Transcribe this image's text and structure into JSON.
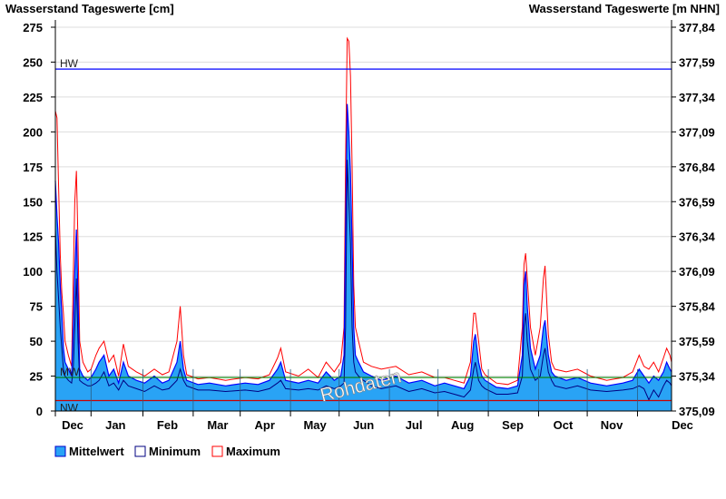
{
  "chart_data": {
    "type": "area",
    "title_left": "Wasserstand Tageswerte [cm]",
    "title_right": "Wasserstand Tageswerte [m NHN]",
    "ylim": [
      0,
      275
    ],
    "y_ticks": [
      0,
      25,
      50,
      75,
      100,
      125,
      150,
      175,
      200,
      225,
      250,
      275
    ],
    "y_tick_labels": [
      "0",
      "25",
      "50",
      "75",
      "100",
      "125",
      "150",
      "175",
      "200",
      "225",
      "250",
      "275"
    ],
    "y2_tick_labels": [
      "375,09",
      "375,34",
      "375,59",
      "375,84",
      "376,09",
      "376,34",
      "376,59",
      "376,84",
      "377,09",
      "377,34",
      "377,59",
      "377,84"
    ],
    "x_days": 380,
    "month_starts": [
      22,
      54,
      85,
      114,
      145,
      175,
      206,
      236,
      267,
      298,
      328,
      359
    ],
    "month_labels": [
      "Dec",
      "Jan",
      "Feb",
      "Mar",
      "Apr",
      "May",
      "Jun",
      "Jul",
      "Aug",
      "Sep",
      "Oct",
      "Nov",
      "Dec"
    ],
    "reference_lines": [
      {
        "label": "HW",
        "value": 245,
        "color": "#0000ff"
      },
      {
        "label": "MW",
        "value": 24,
        "color": "#008000"
      },
      {
        "label": "NW",
        "value": 7.5,
        "color": "#cc0000"
      }
    ],
    "watermark": "Rohdaten",
    "legend": [
      {
        "label": "Mittelwert",
        "color": "#29a3f5"
      },
      {
        "label": "Minimum",
        "color": "#000080"
      },
      {
        "label": "Maximum",
        "color": "#ff0000"
      }
    ],
    "columns": [
      "day",
      "mean",
      "min",
      "max"
    ],
    "points": [
      [
        0,
        165,
        130,
        215
      ],
      [
        1,
        140,
        100,
        210
      ],
      [
        2,
        120,
        80,
        160
      ],
      [
        3,
        90,
        60,
        112
      ],
      [
        4,
        70,
        45,
        85
      ],
      [
        5,
        45,
        30,
        70
      ],
      [
        6,
        35,
        25,
        50
      ],
      [
        8,
        30,
        22,
        40
      ],
      [
        10,
        25,
        20,
        32
      ],
      [
        11,
        60,
        30,
        95
      ],
      [
        12,
        100,
        60,
        150
      ],
      [
        13,
        130,
        95,
        172
      ],
      [
        14,
        80,
        50,
        120
      ],
      [
        15,
        30,
        22,
        50
      ],
      [
        17,
        25,
        20,
        35
      ],
      [
        20,
        22,
        18,
        28
      ],
      [
        22,
        24,
        18,
        30
      ],
      [
        25,
        30,
        20,
        40
      ],
      [
        27,
        35,
        22,
        45
      ],
      [
        30,
        40,
        28,
        50
      ],
      [
        33,
        25,
        18,
        35
      ],
      [
        36,
        30,
        20,
        40
      ],
      [
        39,
        20,
        15,
        25
      ],
      [
        42,
        35,
        22,
        48
      ],
      [
        45,
        25,
        18,
        32
      ],
      [
        50,
        22,
        16,
        28
      ],
      [
        55,
        20,
        14,
        25
      ],
      [
        61,
        25,
        18,
        30
      ],
      [
        66,
        20,
        15,
        26
      ],
      [
        70,
        22,
        16,
        28
      ],
      [
        75,
        35,
        22,
        50
      ],
      [
        77,
        50,
        30,
        75
      ],
      [
        79,
        30,
        22,
        40
      ],
      [
        81,
        22,
        18,
        26
      ],
      [
        88,
        19,
        15,
        23
      ],
      [
        95,
        20,
        15,
        24
      ],
      [
        105,
        18,
        14,
        22
      ],
      [
        117,
        20,
        15,
        24
      ],
      [
        125,
        19,
        14,
        23
      ],
      [
        132,
        22,
        16,
        26
      ],
      [
        137,
        30,
        20,
        38
      ],
      [
        139,
        35,
        22,
        45
      ],
      [
        142,
        22,
        16,
        28
      ],
      [
        150,
        20,
        15,
        25
      ],
      [
        156,
        22,
        16,
        30
      ],
      [
        162,
        20,
        15,
        24
      ],
      [
        167,
        28,
        18,
        35
      ],
      [
        172,
        22,
        16,
        28
      ],
      [
        176,
        25,
        18,
        35
      ],
      [
        178,
        40,
        20,
        60
      ],
      [
        179,
        130,
        60,
        180
      ],
      [
        180,
        220,
        180,
        267
      ],
      [
        181,
        200,
        150,
        265
      ],
      [
        182,
        170,
        120,
        240
      ],
      [
        183,
        120,
        60,
        175
      ],
      [
        184,
        60,
        35,
        90
      ],
      [
        185,
        40,
        28,
        60
      ],
      [
        187,
        35,
        25,
        50
      ],
      [
        190,
        28,
        22,
        35
      ],
      [
        195,
        25,
        18,
        32
      ],
      [
        201,
        22,
        16,
        30
      ],
      [
        210,
        25,
        18,
        32
      ],
      [
        218,
        20,
        14,
        26
      ],
      [
        226,
        22,
        16,
        28
      ],
      [
        234,
        18,
        13,
        24
      ],
      [
        240,
        20,
        14,
        24
      ],
      [
        246,
        18,
        12,
        22
      ],
      [
        252,
        16,
        10,
        20
      ],
      [
        256,
        25,
        15,
        35
      ],
      [
        258,
        50,
        30,
        70
      ],
      [
        259,
        55,
        35,
        70
      ],
      [
        261,
        35,
        22,
        50
      ],
      [
        263,
        25,
        18,
        30
      ],
      [
        265,
        22,
        16,
        26
      ],
      [
        272,
        17,
        12,
        20
      ],
      [
        279,
        16,
        12,
        19
      ],
      [
        285,
        18,
        13,
        22
      ],
      [
        288,
        40,
        25,
        60
      ],
      [
        289,
        90,
        60,
        105
      ],
      [
        290,
        100,
        70,
        113
      ],
      [
        291,
        75,
        50,
        95
      ],
      [
        293,
        45,
        30,
        60
      ],
      [
        296,
        30,
        22,
        40
      ],
      [
        299,
        40,
        25,
        60
      ],
      [
        301,
        60,
        40,
        95
      ],
      [
        302,
        65,
        45,
        104
      ],
      [
        304,
        40,
        28,
        55
      ],
      [
        306,
        28,
        22,
        35
      ],
      [
        308,
        25,
        18,
        30
      ],
      [
        315,
        22,
        16,
        28
      ],
      [
        322,
        24,
        18,
        30
      ],
      [
        330,
        20,
        15,
        25
      ],
      [
        340,
        18,
        14,
        22
      ],
      [
        350,
        20,
        15,
        24
      ],
      [
        356,
        22,
        16,
        28
      ],
      [
        360,
        30,
        18,
        40
      ],
      [
        363,
        25,
        16,
        32
      ],
      [
        366,
        20,
        8,
        30
      ],
      [
        369,
        25,
        15,
        35
      ],
      [
        372,
        22,
        10,
        28
      ],
      [
        375,
        28,
        18,
        38
      ],
      [
        377,
        35,
        22,
        45
      ],
      [
        379,
        30,
        20,
        40
      ],
      [
        380,
        28,
        18,
        35
      ]
    ]
  }
}
